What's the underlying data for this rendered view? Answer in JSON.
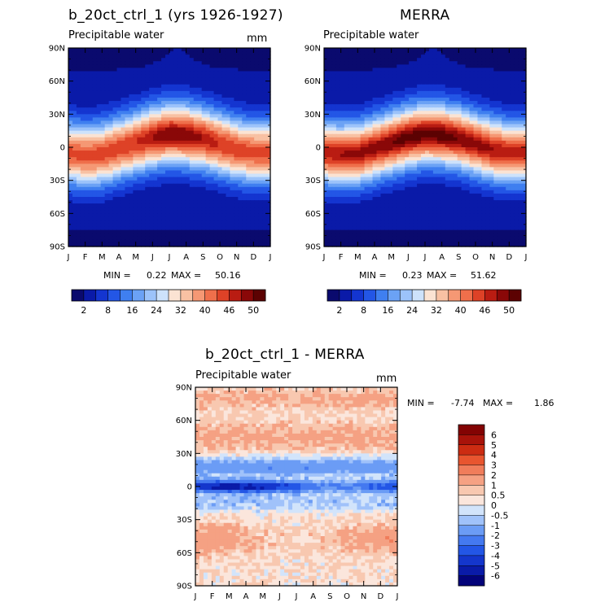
{
  "chart_data": [
    {
      "type": "heatmap",
      "title": "b_20ct_ctrl_1 (yrs 1926-1927)",
      "subtitle": "Precipitable water",
      "units": "mm",
      "x_ticks": [
        "J",
        "F",
        "M",
        "A",
        "M",
        "J",
        "J",
        "A",
        "S",
        "O",
        "N",
        "D",
        "J"
      ],
      "y_ticks": [
        "90N",
        "60N",
        "30N",
        "0",
        "30S",
        "60S",
        "90S"
      ],
      "y_range": [
        -90,
        90
      ],
      "stats": {
        "min_label": "MIN =",
        "min": "0.22",
        "max_label": "MAX =",
        "max": "50.16"
      },
      "colorbar_labels": [
        "2",
        "8",
        "16",
        "24",
        "32",
        "40",
        "46",
        "50"
      ],
      "peak_lat_by_month": [
        -5,
        -8,
        -6,
        -1,
        4,
        9,
        12,
        11,
        8,
        3,
        -2,
        -5,
        -5
      ],
      "peak_value_by_month": [
        44,
        44,
        45,
        45,
        46,
        48,
        50,
        50,
        48,
        46,
        45,
        44,
        44
      ]
    },
    {
      "type": "heatmap",
      "title": "MERRA",
      "subtitle": "Precipitable water",
      "units": "",
      "x_ticks": [
        "J",
        "F",
        "M",
        "A",
        "M",
        "J",
        "J",
        "A",
        "S",
        "O",
        "N",
        "D",
        "J"
      ],
      "y_ticks": [
        "90N",
        "60N",
        "30N",
        "0",
        "30S",
        "60S",
        "90S"
      ],
      "y_range": [
        -90,
        90
      ],
      "stats": {
        "min_label": "MIN =",
        "min": "0.23",
        "max_label": "MAX =",
        "max": "51.62"
      },
      "colorbar_labels": [
        "2",
        "8",
        "16",
        "24",
        "32",
        "40",
        "46",
        "50"
      ],
      "peak_lat_by_month": [
        -5,
        -7,
        -6,
        -1,
        4,
        9,
        12,
        11,
        8,
        3,
        -2,
        -5,
        -5
      ],
      "peak_value_by_month": [
        47,
        48,
        49,
        49,
        50,
        51,
        51,
        51,
        50,
        49,
        48,
        47,
        47
      ]
    },
    {
      "type": "heatmap",
      "title": "b_20ct_ctrl_1 - MERRA",
      "subtitle": "Precipitable water",
      "units": "mm",
      "x_ticks": [
        "J",
        "F",
        "M",
        "A",
        "M",
        "J",
        "J",
        "A",
        "S",
        "O",
        "N",
        "D",
        "J"
      ],
      "y_ticks": [
        "90N",
        "60N",
        "30N",
        "0",
        "30S",
        "60S",
        "90S"
      ],
      "y_range": [
        -90,
        90
      ],
      "stats": {
        "min_label": "MIN =",
        "min": "-7.74",
        "max_label": "MAX =",
        "max": "1.86"
      },
      "colorbar_labels": [
        "6",
        "5",
        "4",
        "3",
        "2",
        "1",
        "0.5",
        "0",
        "-0.5",
        "-1",
        "-2",
        "-3",
        "-4",
        "-5",
        "-6"
      ]
    }
  ],
  "colors": {
    "abs_scale": [
      "#0a0a6e",
      "#0a1aa8",
      "#1435d0",
      "#2356e6",
      "#3f7ff0",
      "#6ba2f5",
      "#9cc3fa",
      "#cde2fb",
      "#fbe3d3",
      "#f8c1a3",
      "#f59874",
      "#ef6f4b",
      "#de4227",
      "#b91c12",
      "#8a0808",
      "#5c0202"
    ],
    "diff_scale": [
      "#03037a",
      "#0a1ba8",
      "#1436cc",
      "#2356e6",
      "#4479f0",
      "#6b9cf5",
      "#a0c2fa",
      "#d2e4fb",
      "#fbe6dc",
      "#f8c8b0",
      "#f5a183",
      "#f07d5b",
      "#e8552f",
      "#cc2c12",
      "#a8130a",
      "#830303"
    ]
  }
}
